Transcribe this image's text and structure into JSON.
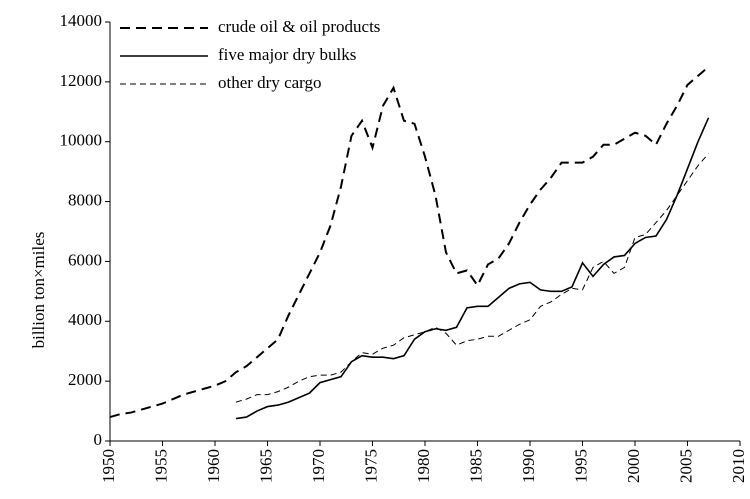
{
  "chart_data": {
    "type": "line",
    "y_label": "billion ton×miles",
    "x": [
      1950,
      1951,
      1952,
      1953,
      1954,
      1955,
      1956,
      1957,
      1958,
      1959,
      1960,
      1961,
      1962,
      1963,
      1964,
      1965,
      1966,
      1967,
      1968,
      1969,
      1970,
      1971,
      1972,
      1973,
      1974,
      1975,
      1976,
      1977,
      1978,
      1979,
      1980,
      1981,
      1982,
      1983,
      1984,
      1985,
      1986,
      1987,
      1988,
      1989,
      1990,
      1991,
      1992,
      1993,
      1994,
      1995,
      1996,
      1997,
      1998,
      1999,
      2000,
      2001,
      2002,
      2003,
      2004,
      2005,
      2006,
      2007
    ],
    "series": [
      {
        "name": "crude oil & oil products",
        "color": "#000000",
        "style": "dashed",
        "values": [
          800,
          900,
          950,
          1050,
          1150,
          1250,
          1400,
          1550,
          1650,
          1750,
          1850,
          2000,
          2300,
          2500,
          2800,
          3100,
          3400,
          4200,
          4900,
          5600,
          6300,
          7200,
          8500,
          10200,
          10700,
          9800,
          11200,
          11800,
          10700,
          10600,
          9500,
          8200,
          6300,
          5600,
          5700,
          5200,
          5900,
          6100,
          6600,
          7300,
          7900,
          8400,
          8800,
          9300,
          9300,
          9300,
          9500,
          9900,
          9900,
          10100,
          10300,
          10200,
          9900,
          10600,
          11200,
          11900,
          12200,
          12500
        ]
      },
      {
        "name": "five major dry bulks",
        "color": "#000000",
        "style": "solid",
        "values": [
          null,
          null,
          null,
          null,
          null,
          null,
          null,
          null,
          null,
          null,
          null,
          null,
          750,
          800,
          1000,
          1150,
          1200,
          1300,
          1450,
          1600,
          1950,
          2050,
          2150,
          2650,
          2850,
          2800,
          2800,
          2750,
          2850,
          3400,
          3650,
          3750,
          3700,
          3800,
          4450,
          4500,
          4500,
          4800,
          5100,
          5250,
          5300,
          5050,
          5000,
          5000,
          5150,
          5950,
          5500,
          5900,
          6150,
          6200,
          6600,
          6800,
          6850,
          7400,
          8200,
          9100,
          10000,
          10800
        ]
      },
      {
        "name": "other dry cargo",
        "color": "#000000",
        "style": "thin-dashed",
        "values": [
          null,
          null,
          null,
          null,
          null,
          null,
          null,
          null,
          null,
          null,
          null,
          null,
          1300,
          1400,
          1550,
          1550,
          1650,
          1800,
          2000,
          2150,
          2200,
          2200,
          2300,
          2650,
          2950,
          2900,
          3100,
          3200,
          3450,
          3550,
          3650,
          3800,
          3600,
          3200,
          3350,
          3400,
          3500,
          3500,
          3700,
          3900,
          4050,
          4500,
          4650,
          4900,
          5100,
          5050,
          5800,
          6000,
          5600,
          5800,
          6800,
          6900,
          7300,
          7700,
          8200,
          8700,
          9200,
          9600
        ]
      }
    ],
    "xlim": [
      1950,
      2010
    ],
    "xticks": [
      1950,
      1955,
      1960,
      1965,
      1970,
      1975,
      1980,
      1985,
      1990,
      1995,
      2000,
      2005,
      2010
    ],
    "ylim": [
      0,
      14000
    ],
    "yticks": [
      0,
      2000,
      4000,
      6000,
      8000,
      10000,
      12000,
      14000
    ],
    "legend": "upper left",
    "grid": false
  }
}
